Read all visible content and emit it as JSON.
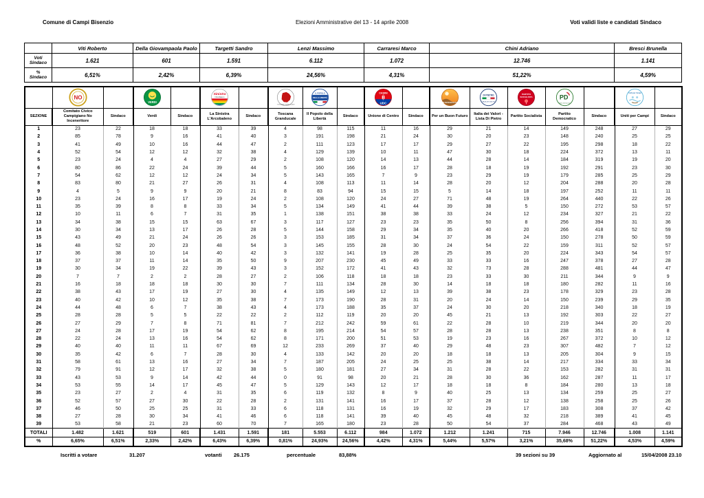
{
  "page_header": {
    "left": "Comune di Campi Bisenzio",
    "center": "Elezioni Amministrative del 13 - 14 aprile 2008",
    "right": "Voti validi liste e candidati Sindaco"
  },
  "summary": {
    "votes_row_label": "Voti\nSindaco",
    "pct_row_label": "%\nSindaco",
    "candidates": [
      {
        "name": "Viti Roberto",
        "votes": "1.621",
        "pct": "6,51%",
        "colspan": 2
      },
      {
        "name": "Della Giovampaola Paolo",
        "votes": "601",
        "pct": "2,42%",
        "colspan": 2
      },
      {
        "name": "Targetti Sandro",
        "votes": "1.591",
        "pct": "6,39%",
        "colspan": 2
      },
      {
        "name": "Lenzi Massimo",
        "votes": "6.112",
        "pct": "24,56%",
        "colspan": 3
      },
      {
        "name": "Carraresi Marco",
        "votes": "1.072",
        "pct": "4,31%",
        "colspan": 2
      },
      {
        "name": "Chini Adriano",
        "votes": "12.746",
        "pct": "51,22%",
        "colspan": 5
      },
      {
        "name": "Bresci Brunella",
        "votes": "1.141",
        "pct": "4,59%",
        "colspan": 2
      }
    ]
  },
  "results_table": {
    "sezione_header": "SEZIONE",
    "columns": [
      {
        "label": "Comitato Civico Campigiano No Inceneritore",
        "logo": "no-inceneritore-logo"
      },
      {
        "label": "Sindaco"
      },
      {
        "label": "Verdi",
        "logo": "verdi-logo"
      },
      {
        "label": "Sindaco"
      },
      {
        "label": "La Sinistra L'Arcobaleno",
        "logo": "sinistra-arcobaleno-logo"
      },
      {
        "label": "Sindaco"
      },
      {
        "label": "Toscana Granducale",
        "logo": "toscana-granducale-logo"
      },
      {
        "label": "Il Popolo della Libertà",
        "logo": "popolo-della-liberta-logo"
      },
      {
        "label": "Sindaco"
      },
      {
        "label": "Unione di Centro",
        "logo": "unione-di-centro-logo"
      },
      {
        "label": "Sindaco"
      },
      {
        "label": "Per un Buon Futuro",
        "logo": "per-un-buon-futuro-logo"
      },
      {
        "label": "Italia dei Valori - Lista Di Pietro",
        "logo": "italia-dei-valori-logo"
      },
      {
        "label": "Partito Socialista",
        "logo": "partito-socialista-logo"
      },
      {
        "label": "Partito Democratico",
        "logo": "partito-democratico-logo"
      },
      {
        "label": "Sindaco"
      },
      {
        "label": "Uniti per Campi",
        "logo": "uniti-per-campi-logo"
      },
      {
        "label": "Sindaco"
      }
    ],
    "rows": [
      {
        "sezione": "1",
        "values": [
          23,
          22,
          18,
          18,
          33,
          39,
          4,
          98,
          115,
          11,
          16,
          29,
          21,
          14,
          149,
          248,
          27,
          29
        ]
      },
      {
        "sezione": "2",
        "values": [
          85,
          78,
          9,
          16,
          41,
          40,
          3,
          191,
          198,
          21,
          24,
          30,
          20,
          23,
          148,
          240,
          25,
          25
        ]
      },
      {
        "sezione": "3",
        "values": [
          41,
          49,
          10,
          16,
          44,
          47,
          2,
          111,
          123,
          17,
          17,
          29,
          27,
          22,
          195,
          298,
          18,
          22
        ]
      },
      {
        "sezione": "4",
        "values": [
          52,
          54,
          12,
          12,
          32,
          38,
          4,
          129,
          139,
          10,
          11,
          47,
          30,
          18,
          224,
          372,
          13,
          11
        ]
      },
      {
        "sezione": "5",
        "values": [
          23,
          24,
          4,
          4,
          27,
          29,
          2,
          108,
          120,
          14,
          13,
          44,
          28,
          14,
          184,
          319,
          19,
          20
        ]
      },
      {
        "sezione": "6",
        "values": [
          80,
          86,
          22,
          24,
          39,
          44,
          5,
          160,
          166,
          16,
          17,
          28,
          18,
          19,
          192,
          291,
          23,
          30
        ]
      },
      {
        "sezione": "7",
        "values": [
          54,
          62,
          12,
          12,
          24,
          34,
          5,
          143,
          165,
          7,
          9,
          23,
          29,
          19,
          179,
          285,
          25,
          29
        ]
      },
      {
        "sezione": "8",
        "values": [
          83,
          80,
          21,
          27,
          26,
          31,
          4,
          108,
          113,
          11,
          14,
          28,
          20,
          12,
          204,
          288,
          20,
          28
        ]
      },
      {
        "sezione": "9",
        "values": [
          4,
          5,
          9,
          9,
          20,
          21,
          8,
          83,
          94,
          15,
          15,
          5,
          14,
          18,
          197,
          252,
          11,
          11
        ]
      },
      {
        "sezione": "10",
        "values": [
          23,
          24,
          16,
          17,
          19,
          24,
          2,
          108,
          120,
          24,
          27,
          71,
          48,
          19,
          264,
          440,
          22,
          26
        ]
      },
      {
        "sezione": "11",
        "values": [
          35,
          39,
          8,
          8,
          33,
          34,
          5,
          134,
          149,
          41,
          44,
          39,
          38,
          5,
          150,
          272,
          53,
          57
        ]
      },
      {
        "sezione": "12",
        "values": [
          10,
          11,
          6,
          7,
          31,
          35,
          1,
          138,
          151,
          38,
          38,
          33,
          24,
          12,
          234,
          327,
          21,
          22
        ]
      },
      {
        "sezione": "13",
        "values": [
          34,
          38,
          15,
          15,
          63,
          67,
          3,
          117,
          127,
          23,
          23,
          35,
          50,
          8,
          256,
          394,
          31,
          36
        ]
      },
      {
        "sezione": "14",
        "values": [
          30,
          34,
          13,
          17,
          26,
          28,
          5,
          144,
          158,
          29,
          34,
          35,
          40,
          20,
          266,
          418,
          52,
          59
        ]
      },
      {
        "sezione": "15",
        "values": [
          43,
          49,
          21,
          24,
          26,
          26,
          3,
          153,
          185,
          31,
          34,
          37,
          36,
          24,
          150,
          278,
          50,
          59
        ]
      },
      {
        "sezione": "16",
        "values": [
          48,
          52,
          20,
          23,
          48,
          54,
          3,
          145,
          155,
          28,
          30,
          24,
          54,
          22,
          159,
          311,
          52,
          57
        ]
      },
      {
        "sezione": "17",
        "values": [
          36,
          38,
          10,
          14,
          40,
          42,
          3,
          132,
          141,
          19,
          28,
          25,
          35,
          20,
          224,
          343,
          54,
          57
        ]
      },
      {
        "sezione": "18",
        "values": [
          37,
          37,
          11,
          14,
          35,
          50,
          9,
          207,
          230,
          45,
          49,
          33,
          33,
          16,
          247,
          378,
          27,
          28
        ]
      },
      {
        "sezione": "19",
        "values": [
          30,
          34,
          19,
          22,
          39,
          43,
          3,
          152,
          172,
          41,
          43,
          32,
          73,
          28,
          288,
          481,
          44,
          47
        ]
      },
      {
        "sezione": "20",
        "values": [
          7,
          7,
          2,
          2,
          28,
          27,
          2,
          106,
          118,
          18,
          18,
          23,
          33,
          30,
          211,
          344,
          9,
          9
        ]
      },
      {
        "sezione": "21",
        "values": [
          16,
          18,
          18,
          18,
          30,
          30,
          7,
          111,
          134,
          28,
          30,
          14,
          18,
          18,
          180,
          282,
          11,
          16
        ]
      },
      {
        "sezione": "22",
        "values": [
          38,
          43,
          17,
          19,
          27,
          30,
          4,
          135,
          149,
          12,
          13,
          39,
          38,
          23,
          178,
          329,
          23,
          28
        ]
      },
      {
        "sezione": "23",
        "values": [
          40,
          42,
          10,
          12,
          35,
          38,
          7,
          173,
          190,
          28,
          31,
          20,
          24,
          14,
          150,
          239,
          29,
          35
        ]
      },
      {
        "sezione": "24",
        "values": [
          44,
          48,
          6,
          7,
          38,
          43,
          4,
          173,
          188,
          35,
          37,
          24,
          30,
          20,
          218,
          340,
          18,
          19
        ]
      },
      {
        "sezione": "25",
        "values": [
          28,
          28,
          5,
          5,
          22,
          22,
          2,
          112,
          119,
          20,
          20,
          45,
          21,
          13,
          192,
          303,
          22,
          27
        ]
      },
      {
        "sezione": "26",
        "values": [
          27,
          29,
          7,
          8,
          71,
          81,
          7,
          212,
          242,
          59,
          61,
          22,
          28,
          10,
          219,
          344,
          20,
          20
        ]
      },
      {
        "sezione": "27",
        "values": [
          24,
          28,
          17,
          19,
          54,
          62,
          8,
          195,
          214,
          54,
          57,
          28,
          28,
          13,
          238,
          351,
          8,
          8
        ]
      },
      {
        "sezione": "28",
        "values": [
          22,
          24,
          13,
          16,
          54,
          62,
          8,
          171,
          200,
          51,
          53,
          19,
          23,
          16,
          267,
          372,
          10,
          12
        ]
      },
      {
        "sezione": "29",
        "values": [
          40,
          40,
          11,
          11,
          67,
          69,
          12,
          233,
          269,
          37,
          40,
          29,
          48,
          23,
          307,
          482,
          7,
          12
        ]
      },
      {
        "sezione": "30",
        "values": [
          35,
          42,
          6,
          7,
          28,
          30,
          4,
          133,
          142,
          20,
          20,
          18,
          18,
          13,
          205,
          304,
          9,
          15
        ]
      },
      {
        "sezione": "31",
        "values": [
          58,
          61,
          13,
          16,
          27,
          34,
          7,
          187,
          205,
          24,
          25,
          25,
          38,
          14,
          217,
          334,
          33,
          34
        ]
      },
      {
        "sezione": "32",
        "values": [
          79,
          91,
          12,
          17,
          32,
          38,
          5,
          180,
          181,
          27,
          34,
          31,
          28,
          22,
          153,
          282,
          31,
          31
        ]
      },
      {
        "sezione": "33",
        "values": [
          43,
          53,
          9,
          14,
          42,
          44,
          0,
          91,
          98,
          20,
          21,
          28,
          30,
          36,
          162,
          287,
          11,
          17
        ]
      },
      {
        "sezione": "34",
        "values": [
          53,
          55,
          14,
          17,
          45,
          47,
          5,
          129,
          143,
          12,
          17,
          18,
          18,
          8,
          184,
          280,
          13,
          18
        ]
      },
      {
        "sezione": "35",
        "values": [
          23,
          27,
          2,
          4,
          31,
          35,
          6,
          119,
          132,
          8,
          9,
          40,
          25,
          13,
          134,
          259,
          25,
          27
        ]
      },
      {
        "sezione": "36",
        "values": [
          52,
          57,
          27,
          30,
          22,
          28,
          2,
          131,
          141,
          16,
          17,
          37,
          28,
          12,
          138,
          258,
          25,
          26
        ]
      },
      {
        "sezione": "37",
        "values": [
          46,
          50,
          25,
          25,
          31,
          33,
          6,
          118,
          131,
          16,
          19,
          32,
          29,
          17,
          183,
          308,
          37,
          42
        ]
      },
      {
        "sezione": "38",
        "values": [
          27,
          28,
          30,
          34,
          41,
          46,
          6,
          118,
          141,
          39,
          40,
          45,
          48,
          32,
          218,
          389,
          41,
          45
        ]
      },
      {
        "sezione": "39",
        "values": [
          53,
          58,
          21,
          23,
          60,
          70,
          7,
          165,
          180,
          23,
          28,
          50,
          54,
          37,
          284,
          468,
          43,
          49
        ]
      }
    ],
    "totals": {
      "label": "TOTALI",
      "values": [
        "1.482",
        "1.621",
        "519",
        "601",
        "1.431",
        "1.591",
        "181",
        "5.553",
        "6.112",
        "984",
        "1.072",
        "1.212",
        "1.241",
        "715",
        "7.946",
        "12.746",
        "1.008",
        "1.141"
      ]
    },
    "percentages": {
      "label": "%",
      "values": [
        "6,65%",
        "6,51%",
        "2,33%",
        "2,42%",
        "6,43%",
        "6,39%",
        "0,81%",
        "24,93%",
        "24,56%",
        "4,42%",
        "4,31%",
        "5,44%",
        "5,57%",
        "3,21%",
        "35,68%",
        "51,22%",
        "4,53%",
        "4,59%"
      ]
    }
  },
  "footer": {
    "iscritti_label": "Iscritti a votare",
    "iscritti_value": "31.207",
    "votanti_label": "votanti",
    "votanti_value": "26.175",
    "percentuale_label": "percentuale",
    "percentuale_value": "83,88%",
    "sezioni": "39 sezioni su 39",
    "aggiornato_label": "Aggiornato al",
    "aggiornato_value": "15/04/2008 23.10"
  }
}
